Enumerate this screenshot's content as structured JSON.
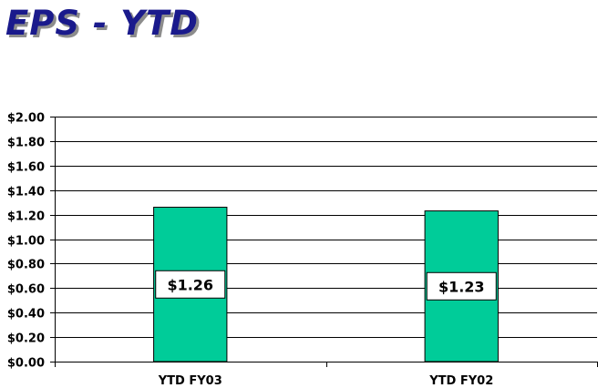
{
  "slide": {
    "title": "EPS - YTD"
  },
  "colors": {
    "bar_fill": "#00cc99",
    "bar_stroke": "#000000",
    "title": "#1a1a8c"
  },
  "chart_data": {
    "type": "bar",
    "title": "",
    "xlabel": "",
    "ylabel": "",
    "categories": [
      "YTD FY03",
      "YTD FY02"
    ],
    "values": [
      1.26,
      1.23
    ],
    "data_labels": [
      "$1.26",
      "$1.23"
    ],
    "ylim": [
      0,
      2.0
    ],
    "ytick_step": 0.2,
    "ytick_labels": [
      "$0.00",
      "$0.20",
      "$0.40",
      "$0.60",
      "$0.80",
      "$1.00",
      "$1.20",
      "$1.40",
      "$1.60",
      "$1.80",
      "$2.00"
    ],
    "grid": true,
    "legend": "none"
  }
}
